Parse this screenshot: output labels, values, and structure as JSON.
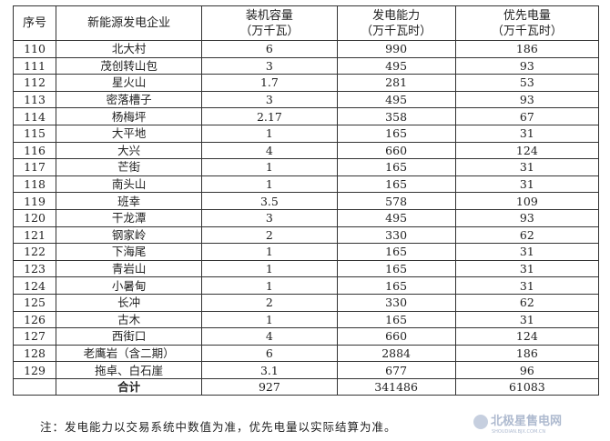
{
  "headers": {
    "no": "序号",
    "name": "新能源发电企业",
    "cap": "装机容量",
    "cap_unit": "（万千瓦）",
    "gen": "发电能力",
    "gen_unit": "（万千瓦时）",
    "pri": "优先电量",
    "pri_unit": "（万千瓦时）"
  },
  "rows": [
    [
      "110",
      "北大村",
      "6",
      "990",
      "186"
    ],
    [
      "111",
      "茂创转山包",
      "3",
      "495",
      "93"
    ],
    [
      "112",
      "星火山",
      "1.7",
      "281",
      "53"
    ],
    [
      "113",
      "密落槽子",
      "3",
      "495",
      "93"
    ],
    [
      "114",
      "杨梅坪",
      "2.17",
      "358",
      "67"
    ],
    [
      "115",
      "大平地",
      "1",
      "165",
      "31"
    ],
    [
      "116",
      "大兴",
      "4",
      "660",
      "124"
    ],
    [
      "117",
      "芒街",
      "1",
      "165",
      "31"
    ],
    [
      "118",
      "南头山",
      "1",
      "165",
      "31"
    ],
    [
      "119",
      "班幸",
      "3.5",
      "578",
      "109"
    ],
    [
      "120",
      "干龙潭",
      "3",
      "495",
      "93"
    ],
    [
      "121",
      "钢家岭",
      "2",
      "330",
      "62"
    ],
    [
      "122",
      "下海尾",
      "1",
      "165",
      "31"
    ],
    [
      "123",
      "青岩山",
      "1",
      "165",
      "31"
    ],
    [
      "124",
      "小暑甸",
      "1",
      "165",
      "31"
    ],
    [
      "125",
      "长冲",
      "2",
      "330",
      "62"
    ],
    [
      "126",
      "古木",
      "1",
      "165",
      "31"
    ],
    [
      "127",
      "西街口",
      "4",
      "660",
      "124"
    ],
    [
      "128",
      "老鹰岩（含二期）",
      "6",
      "2884",
      "186"
    ],
    [
      "129",
      "拖卓、白石崖",
      "3.1",
      "677",
      "96"
    ]
  ],
  "total": {
    "label": "合计",
    "cap": "927",
    "gen": "341486",
    "pri": "61083"
  },
  "note": "注：发电能力以交易系统中数值为准，优先电量以实际结算为准。",
  "watermark": {
    "text": "北极星售电网",
    "sub": "SHOUDIAN.BJX.COM.CN"
  }
}
